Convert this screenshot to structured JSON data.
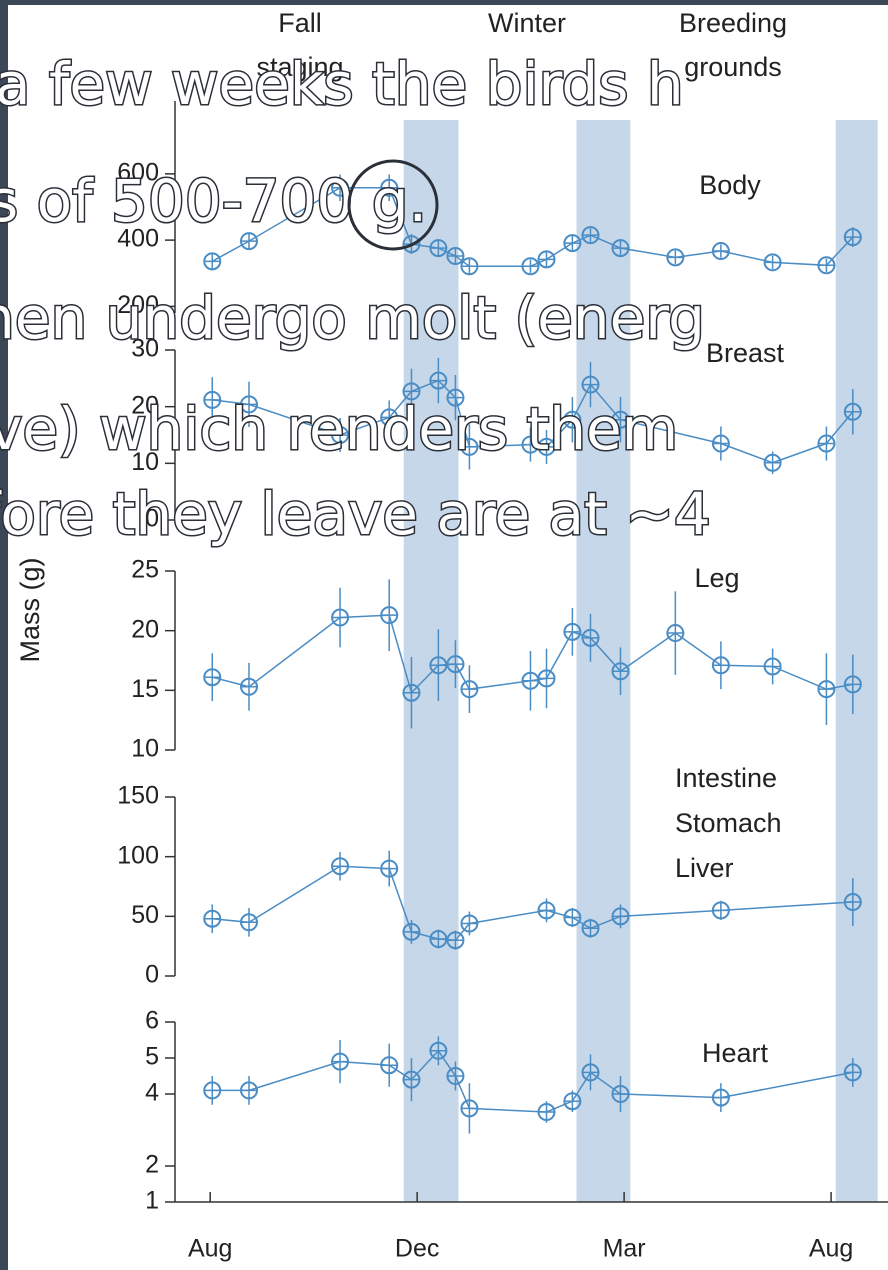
{
  "slide": {
    "lines": [
      "a few weeks the birds h",
      "s of 500-700 g.",
      "hen undergo molt (energ",
      "ve) which renders them",
      "fore they leave are at ~4"
    ]
  },
  "figure": {
    "ylabel": "Mass (g)",
    "season_labels": [
      [
        "Fall",
        "staging"
      ],
      [
        "Winter"
      ],
      [
        "Breeding",
        "grounds"
      ]
    ],
    "bands": [
      [
        3.74,
        4.8
      ],
      [
        7.08,
        8.12
      ],
      [
        12.09,
        12.9
      ]
    ],
    "band_color": "#c6d7ea",
    "xlim": [
      -0.68,
      13.1
    ],
    "xticks": [
      {
        "value": 0,
        "label": "Aug"
      },
      {
        "value": 4,
        "label": "Dec"
      },
      {
        "value": 8,
        "label": "Mar"
      },
      {
        "value": 12,
        "label": "Aug"
      }
    ]
  },
  "chart_data": [
    {
      "type": "line",
      "title": [
        "Body"
      ],
      "color": "#4a8cc4",
      "x": [
        0.04,
        0.75,
        2.51,
        3.46,
        3.89,
        4.41,
        4.74,
        5.01,
        6.19,
        6.5,
        7.0,
        7.35,
        7.93,
        8.99,
        9.87,
        10.87,
        11.91,
        12.42
      ],
      "values": [
        336,
        397,
        558,
        558,
        388,
        376,
        352,
        321,
        321,
        342,
        391,
        415,
        376,
        348,
        367,
        333,
        324,
        409
      ],
      "errors": [
        25,
        25,
        40,
        40,
        30,
        25,
        25,
        25,
        20,
        25,
        25,
        20,
        25,
        20,
        20,
        20,
        20,
        30
      ],
      "ylim": [
        180,
        820
      ],
      "yticks": [
        200,
        400,
        600
      ]
    },
    {
      "type": "line",
      "title": [
        "Breast"
      ],
      "color": "#4a8cc4",
      "x": [
        0.04,
        0.75,
        2.51,
        3.46,
        3.89,
        4.41,
        4.74,
        5.01,
        6.19,
        6.5,
        7.0,
        7.35,
        7.93,
        8.99,
        9.87,
        10.87,
        11.91,
        12.42
      ],
      "values": [
        21.2,
        20.4,
        15.0,
        18.1,
        22.7,
        24.6,
        21.6,
        12.9,
        13.3,
        12.9,
        17.7,
        23.9,
        17.7,
        null,
        13.5,
        10.1,
        13.5,
        19.1
      ],
      "errors": [
        4,
        4,
        3,
        3,
        4,
        4,
        4,
        4,
        3,
        3,
        4,
        4,
        4,
        null,
        3,
        2,
        3,
        4
      ],
      "ylim": [
        0,
        30
      ],
      "yticks": [
        0,
        10,
        20,
        30
      ]
    },
    {
      "type": "line",
      "title": [
        "Leg"
      ],
      "color": "#4a8cc4",
      "x": [
        0.04,
        0.75,
        2.51,
        3.46,
        3.89,
        4.41,
        4.74,
        5.01,
        6.19,
        6.5,
        7.0,
        7.35,
        7.93,
        8.99,
        9.87,
        10.87,
        11.91,
        12.42
      ],
      "values": [
        16.1,
        15.3,
        21.1,
        21.3,
        14.8,
        17.1,
        17.2,
        15.1,
        15.8,
        16.0,
        19.9,
        19.4,
        16.6,
        19.8,
        17.1,
        17.0,
        15.1,
        15.5
      ],
      "errors": [
        2,
        2,
        2.5,
        3,
        3,
        3,
        2,
        2,
        2.5,
        2.5,
        2,
        2,
        2,
        3.5,
        2,
        1.5,
        3,
        2.5
      ],
      "ylim": [
        10,
        25
      ],
      "yticks": [
        10,
        15,
        20,
        25
      ]
    },
    {
      "type": "line",
      "title": [
        "Intestine",
        "Stomach",
        "Liver"
      ],
      "color": "#4a8cc4",
      "x": [
        0.04,
        0.75,
        2.51,
        3.46,
        3.89,
        4.41,
        4.74,
        5.01,
        6.19,
        6.5,
        7.0,
        7.35,
        7.93,
        8.99,
        9.87,
        10.87,
        11.91,
        12.42
      ],
      "values": [
        48,
        45,
        92,
        90,
        37,
        31,
        30,
        44,
        null,
        55,
        49,
        40,
        50,
        null,
        55,
        null,
        null,
        62
      ],
      "errors": [
        12,
        12,
        12,
        15,
        10,
        8,
        8,
        10,
        null,
        10,
        8,
        8,
        10,
        null,
        8,
        null,
        null,
        20
      ],
      "ylim": [
        0,
        150
      ],
      "yticks": [
        0,
        50,
        100,
        150
      ]
    },
    {
      "type": "line",
      "title": [
        "Heart"
      ],
      "color": "#4a8cc4",
      "x": [
        0.04,
        0.75,
        2.51,
        3.46,
        3.89,
        4.41,
        4.74,
        5.01,
        6.19,
        6.5,
        7.0,
        7.35,
        7.93,
        8.99,
        9.87,
        10.87,
        11.91,
        12.42
      ],
      "values": [
        4.1,
        4.1,
        4.9,
        4.8,
        4.4,
        5.2,
        4.5,
        3.6,
        null,
        3.5,
        3.8,
        4.6,
        4.0,
        null,
        3.9,
        null,
        null,
        4.6
      ],
      "errors": [
        0.4,
        0.4,
        0.6,
        0.6,
        0.6,
        0.4,
        0.4,
        0.7,
        null,
        0.3,
        0.3,
        0.5,
        0.5,
        null,
        0.4,
        null,
        null,
        0.4
      ],
      "ylim": [
        1,
        6
      ],
      "yticks": [
        1,
        2,
        4,
        5,
        6
      ]
    }
  ]
}
